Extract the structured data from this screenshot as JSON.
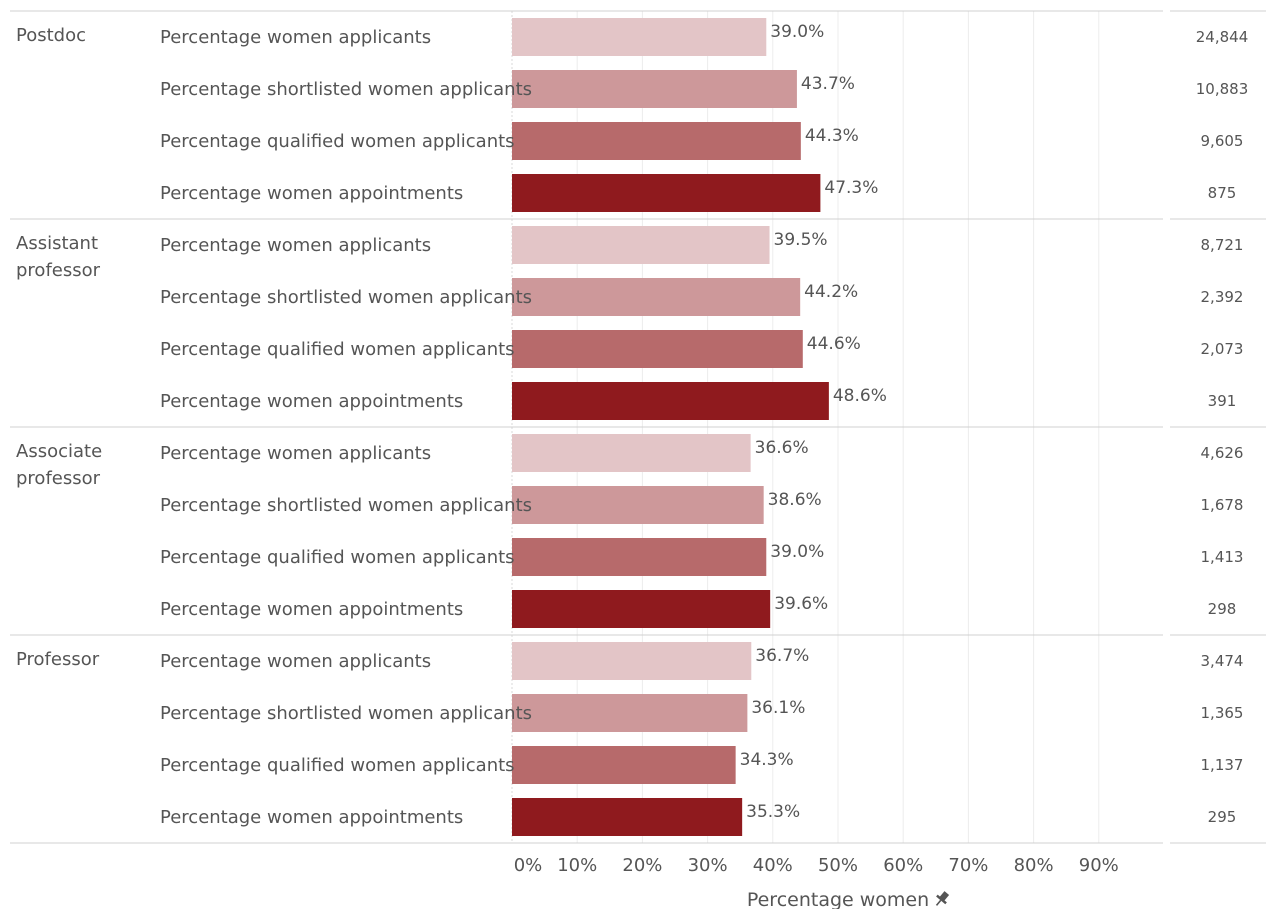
{
  "chart_data": {
    "type": "bar",
    "orientation": "horizontal",
    "title": "",
    "xlabel": "Percentage women",
    "ylabel": "",
    "xlim": [
      0,
      1.0
    ],
    "x_ticks": [
      "0%",
      "10%",
      "20%",
      "30%",
      "40%",
      "50%",
      "60%",
      "70%",
      "80%",
      "90%"
    ],
    "grid": true,
    "series_colors": {
      "Percentage women applicants": "#e3c5c7",
      "Percentage shortlisted women applicants": "#cd989a",
      "Percentage qualified women applicants": "#b76a6b",
      "Percentage women appointments": "#8f1a1e"
    },
    "groups": [
      {
        "name": "Postdoc",
        "rows": [
          {
            "label": "Percentage women applicants",
            "value": 0.39,
            "value_label": "39.0%",
            "count": "24,844"
          },
          {
            "label": "Percentage shortlisted women applicants",
            "value": 0.437,
            "value_label": "43.7%",
            "count": "10,883"
          },
          {
            "label": "Percentage qualified women applicants",
            "value": 0.443,
            "value_label": "44.3%",
            "count": "9,605"
          },
          {
            "label": "Percentage women appointments",
            "value": 0.473,
            "value_label": "47.3%",
            "count": "875"
          }
        ]
      },
      {
        "name": "Assistant professor",
        "rows": [
          {
            "label": "Percentage women applicants",
            "value": 0.395,
            "value_label": "39.5%",
            "count": "8,721"
          },
          {
            "label": "Percentage shortlisted women applicants",
            "value": 0.442,
            "value_label": "44.2%",
            "count": "2,392"
          },
          {
            "label": "Percentage qualified women applicants",
            "value": 0.446,
            "value_label": "44.6%",
            "count": "2,073"
          },
          {
            "label": "Percentage women appointments",
            "value": 0.486,
            "value_label": "48.6%",
            "count": "391"
          }
        ]
      },
      {
        "name": "Associate professor",
        "rows": [
          {
            "label": "Percentage women applicants",
            "value": 0.366,
            "value_label": "36.6%",
            "count": "4,626"
          },
          {
            "label": "Percentage shortlisted women applicants",
            "value": 0.386,
            "value_label": "38.6%",
            "count": "1,678"
          },
          {
            "label": "Percentage qualified women applicants",
            "value": 0.39,
            "value_label": "39.0%",
            "count": "1,413"
          },
          {
            "label": "Percentage women appointments",
            "value": 0.396,
            "value_label": "39.6%",
            "count": "298"
          }
        ]
      },
      {
        "name": "Professor",
        "rows": [
          {
            "label": "Percentage women applicants",
            "value": 0.367,
            "value_label": "36.7%",
            "count": "3,474"
          },
          {
            "label": "Percentage shortlisted women applicants",
            "value": 0.361,
            "value_label": "36.1%",
            "count": "1,365"
          },
          {
            "label": "Percentage qualified women applicants",
            "value": 0.343,
            "value_label": "34.3%",
            "count": "1,137"
          },
          {
            "label": "Percentage women appointments",
            "value": 0.353,
            "value_label": "35.3%",
            "count": "295"
          }
        ]
      }
    ]
  },
  "axis": {
    "pin_icon": "pin-icon"
  }
}
